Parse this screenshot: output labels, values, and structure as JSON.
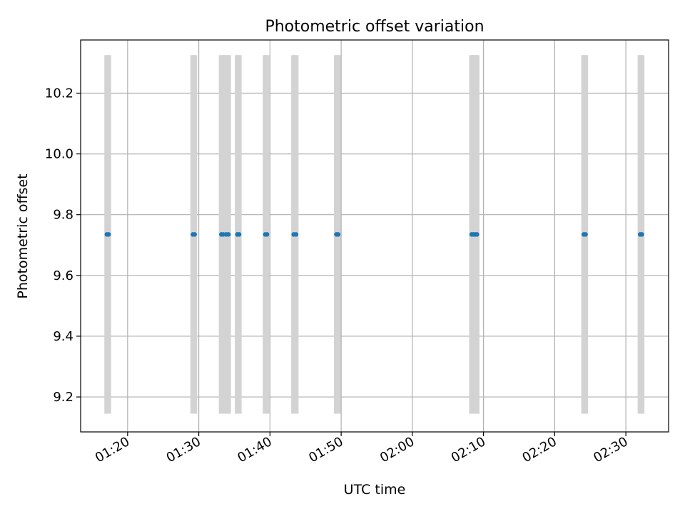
{
  "chart_data": {
    "type": "scatter",
    "title": "Photometric offset variation",
    "xlabel": "UTC time",
    "ylabel": "Photometric offset",
    "x_axis": {
      "type": "time",
      "range": [
        "01:13:24",
        "02:36:00"
      ],
      "ticks": [
        "01:20",
        "01:30",
        "01:40",
        "01:50",
        "02:00",
        "02:10",
        "02:20",
        "02:30"
      ]
    },
    "y_axis": {
      "range": [
        9.085,
        10.375
      ],
      "ticks": [
        "9.2",
        "9.4",
        "9.6",
        "9.8",
        "10.0",
        "10.2"
      ]
    },
    "grid": true,
    "legend": false,
    "colors": {
      "points": "#1f77b4",
      "error_bars": "#d3d3d3",
      "grid": "#b0b0b0"
    },
    "series": [
      {
        "error_bar": [
          9.145,
          10.325
        ],
        "points": [
          {
            "x": "01:17:05",
            "y": 9.735
          },
          {
            "x": "01:17:20",
            "y": 9.735
          },
          {
            "x": "01:29:10",
            "y": 9.735
          },
          {
            "x": "01:29:25",
            "y": 9.735
          },
          {
            "x": "01:33:10",
            "y": 9.735
          },
          {
            "x": "01:33:25",
            "y": 9.735
          },
          {
            "x": "01:33:50",
            "y": 9.735
          },
          {
            "x": "01:34:10",
            "y": 9.735
          },
          {
            "x": "01:35:25",
            "y": 9.735
          },
          {
            "x": "01:35:40",
            "y": 9.735
          },
          {
            "x": "01:39:20",
            "y": 9.735
          },
          {
            "x": "01:39:35",
            "y": 9.735
          },
          {
            "x": "01:43:20",
            "y": 9.735
          },
          {
            "x": "01:43:40",
            "y": 9.735
          },
          {
            "x": "01:49:20",
            "y": 9.735
          },
          {
            "x": "01:49:35",
            "y": 9.735
          },
          {
            "x": "02:08:20",
            "y": 9.735
          },
          {
            "x": "02:08:35",
            "y": 9.735
          },
          {
            "x": "02:08:50",
            "y": 9.735
          },
          {
            "x": "02:09:05",
            "y": 9.735
          },
          {
            "x": "02:24:05",
            "y": 9.735
          },
          {
            "x": "02:24:20",
            "y": 9.735
          },
          {
            "x": "02:32:00",
            "y": 9.735
          },
          {
            "x": "02:32:15",
            "y": 9.735
          }
        ]
      }
    ]
  }
}
